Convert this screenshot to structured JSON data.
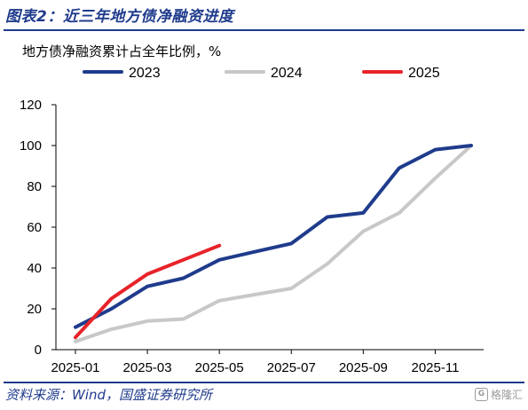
{
  "header": {
    "title": "图表2：近三年地方债净融资进度"
  },
  "footer": {
    "source": "资料来源：Wind，国盛证券研究所",
    "watermark_logo": "G",
    "watermark_text": "格隆汇"
  },
  "chart_data": {
    "type": "line",
    "unit_label": "地方债净融资累计占全年比例，%",
    "x_ticks": [
      "2025-01",
      "2025-03",
      "2025-05",
      "2025-07",
      "2025-09",
      "2025-11"
    ],
    "y_ticks": [
      "0",
      "20",
      "40",
      "60",
      "80",
      "100",
      "120"
    ],
    "xlim": [
      "2025-01",
      "2025-12"
    ],
    "ylim": [
      0,
      120
    ],
    "grid": false,
    "legend_position": "top",
    "series": [
      {
        "name": "2023",
        "color": "#1f3b8c",
        "points": [
          {
            "x": "2025-01",
            "y": 11
          },
          {
            "x": "2025-02",
            "y": 20
          },
          {
            "x": "2025-03",
            "y": 31
          },
          {
            "x": "2025-04",
            "y": 35
          },
          {
            "x": "2025-05",
            "y": 44
          },
          {
            "x": "2025-06",
            "y": 48
          },
          {
            "x": "2025-07",
            "y": 52
          },
          {
            "x": "2025-08",
            "y": 65
          },
          {
            "x": "2025-09",
            "y": 67
          },
          {
            "x": "2025-10",
            "y": 89
          },
          {
            "x": "2025-11",
            "y": 98
          },
          {
            "x": "2025-12",
            "y": 100
          }
        ]
      },
      {
        "name": "2024",
        "color": "#c8c8c8",
        "points": [
          {
            "x": "2025-01",
            "y": 4
          },
          {
            "x": "2025-02",
            "y": 10
          },
          {
            "x": "2025-03",
            "y": 14
          },
          {
            "x": "2025-04",
            "y": 15
          },
          {
            "x": "2025-05",
            "y": 24
          },
          {
            "x": "2025-06",
            "y": 27
          },
          {
            "x": "2025-07",
            "y": 30
          },
          {
            "x": "2025-08",
            "y": 42
          },
          {
            "x": "2025-09",
            "y": 58
          },
          {
            "x": "2025-10",
            "y": 67
          },
          {
            "x": "2025-11",
            "y": 84
          },
          {
            "x": "2025-12",
            "y": 100
          }
        ]
      },
      {
        "name": "2025",
        "color": "#e8232a",
        "points": [
          {
            "x": "2025-01",
            "y": 6
          },
          {
            "x": "2025-02",
            "y": 25
          },
          {
            "x": "2025-03",
            "y": 37
          },
          {
            "x": "2025-04",
            "y": 44
          },
          {
            "x": "2025-05",
            "y": 51
          }
        ]
      }
    ]
  }
}
